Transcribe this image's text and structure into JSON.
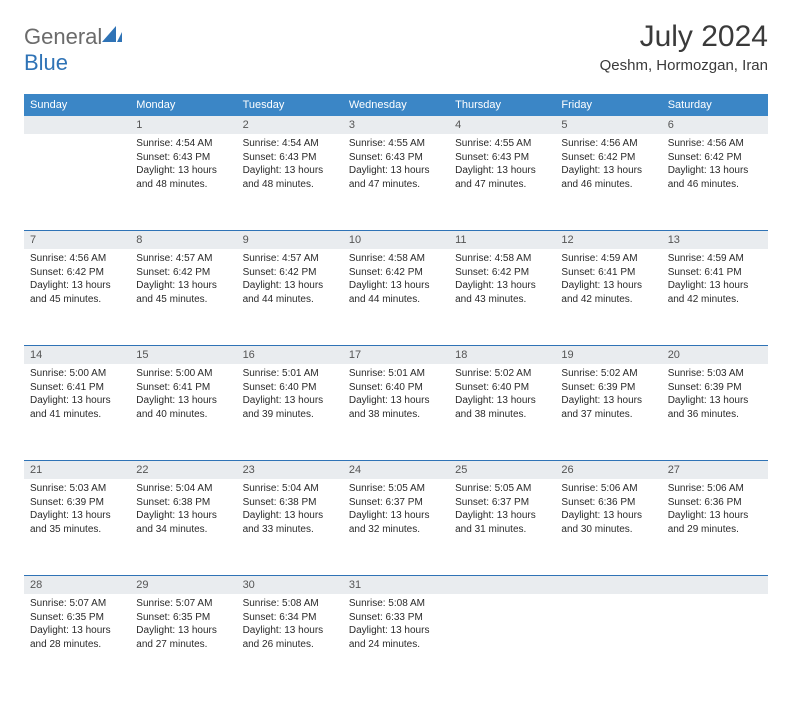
{
  "brand": {
    "part1": "General",
    "part2": "Blue"
  },
  "title": "July 2024",
  "location": "Qeshm, Hormozgan, Iran",
  "colors": {
    "header_bg": "#3b86c6",
    "daynum_bg": "#e9ecef",
    "week_divider": "#2f73b6",
    "text": "#2a2a2a",
    "title_text": "#3a3a3a"
  },
  "weekdays": [
    "Sunday",
    "Monday",
    "Tuesday",
    "Wednesday",
    "Thursday",
    "Friday",
    "Saturday"
  ],
  "weeks": [
    {
      "nums": [
        "",
        "1",
        "2",
        "3",
        "4",
        "5",
        "6"
      ],
      "cells": [
        null,
        {
          "sunrise": "4:54 AM",
          "sunset": "6:43 PM",
          "dayh": 13,
          "daym": 48
        },
        {
          "sunrise": "4:54 AM",
          "sunset": "6:43 PM",
          "dayh": 13,
          "daym": 48
        },
        {
          "sunrise": "4:55 AM",
          "sunset": "6:43 PM",
          "dayh": 13,
          "daym": 47
        },
        {
          "sunrise": "4:55 AM",
          "sunset": "6:43 PM",
          "dayh": 13,
          "daym": 47
        },
        {
          "sunrise": "4:56 AM",
          "sunset": "6:42 PM",
          "dayh": 13,
          "daym": 46
        },
        {
          "sunrise": "4:56 AM",
          "sunset": "6:42 PM",
          "dayh": 13,
          "daym": 46
        }
      ]
    },
    {
      "nums": [
        "7",
        "8",
        "9",
        "10",
        "11",
        "12",
        "13"
      ],
      "cells": [
        {
          "sunrise": "4:56 AM",
          "sunset": "6:42 PM",
          "dayh": 13,
          "daym": 45
        },
        {
          "sunrise": "4:57 AM",
          "sunset": "6:42 PM",
          "dayh": 13,
          "daym": 45
        },
        {
          "sunrise": "4:57 AM",
          "sunset": "6:42 PM",
          "dayh": 13,
          "daym": 44
        },
        {
          "sunrise": "4:58 AM",
          "sunset": "6:42 PM",
          "dayh": 13,
          "daym": 44
        },
        {
          "sunrise": "4:58 AM",
          "sunset": "6:42 PM",
          "dayh": 13,
          "daym": 43
        },
        {
          "sunrise": "4:59 AM",
          "sunset": "6:41 PM",
          "dayh": 13,
          "daym": 42
        },
        {
          "sunrise": "4:59 AM",
          "sunset": "6:41 PM",
          "dayh": 13,
          "daym": 42
        }
      ]
    },
    {
      "nums": [
        "14",
        "15",
        "16",
        "17",
        "18",
        "19",
        "20"
      ],
      "cells": [
        {
          "sunrise": "5:00 AM",
          "sunset": "6:41 PM",
          "dayh": 13,
          "daym": 41
        },
        {
          "sunrise": "5:00 AM",
          "sunset": "6:41 PM",
          "dayh": 13,
          "daym": 40
        },
        {
          "sunrise": "5:01 AM",
          "sunset": "6:40 PM",
          "dayh": 13,
          "daym": 39
        },
        {
          "sunrise": "5:01 AM",
          "sunset": "6:40 PM",
          "dayh": 13,
          "daym": 38
        },
        {
          "sunrise": "5:02 AM",
          "sunset": "6:40 PM",
          "dayh": 13,
          "daym": 38
        },
        {
          "sunrise": "5:02 AM",
          "sunset": "6:39 PM",
          "dayh": 13,
          "daym": 37
        },
        {
          "sunrise": "5:03 AM",
          "sunset": "6:39 PM",
          "dayh": 13,
          "daym": 36
        }
      ]
    },
    {
      "nums": [
        "21",
        "22",
        "23",
        "24",
        "25",
        "26",
        "27"
      ],
      "cells": [
        {
          "sunrise": "5:03 AM",
          "sunset": "6:39 PM",
          "dayh": 13,
          "daym": 35
        },
        {
          "sunrise": "5:04 AM",
          "sunset": "6:38 PM",
          "dayh": 13,
          "daym": 34
        },
        {
          "sunrise": "5:04 AM",
          "sunset": "6:38 PM",
          "dayh": 13,
          "daym": 33
        },
        {
          "sunrise": "5:05 AM",
          "sunset": "6:37 PM",
          "dayh": 13,
          "daym": 32
        },
        {
          "sunrise": "5:05 AM",
          "sunset": "6:37 PM",
          "dayh": 13,
          "daym": 31
        },
        {
          "sunrise": "5:06 AM",
          "sunset": "6:36 PM",
          "dayh": 13,
          "daym": 30
        },
        {
          "sunrise": "5:06 AM",
          "sunset": "6:36 PM",
          "dayh": 13,
          "daym": 29
        }
      ]
    },
    {
      "nums": [
        "28",
        "29",
        "30",
        "31",
        "",
        "",
        ""
      ],
      "cells": [
        {
          "sunrise": "5:07 AM",
          "sunset": "6:35 PM",
          "dayh": 13,
          "daym": 28
        },
        {
          "sunrise": "5:07 AM",
          "sunset": "6:35 PM",
          "dayh": 13,
          "daym": 27
        },
        {
          "sunrise": "5:08 AM",
          "sunset": "6:34 PM",
          "dayh": 13,
          "daym": 26
        },
        {
          "sunrise": "5:08 AM",
          "sunset": "6:33 PM",
          "dayh": 13,
          "daym": 24
        },
        null,
        null,
        null
      ]
    }
  ],
  "labels": {
    "sunrise": "Sunrise:",
    "sunset": "Sunset:",
    "daylight_prefix": "Daylight:",
    "hours": "hours",
    "and": "and",
    "minutes": "minutes."
  }
}
